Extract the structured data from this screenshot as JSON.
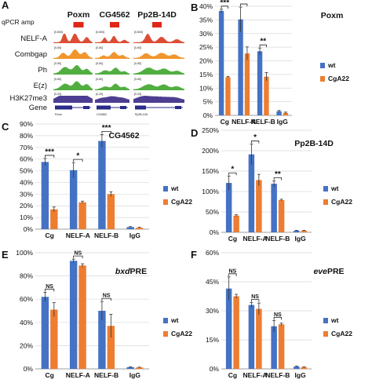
{
  "figure": {
    "panels": {
      "A": {
        "letter": "A",
        "header_label": "qPCR amp",
        "loci": [
          "Poxm",
          "CG4562",
          "Pp2B-14D"
        ],
        "tracks": [
          {
            "name": "NELF-A",
            "color": "#d83a1e",
            "scale": "[0-500]"
          },
          {
            "name": "Combgap",
            "color": "#ef8a16",
            "scale": "[0-50]"
          },
          {
            "name": "Ph",
            "color": "#3fa52c",
            "scale": "[0-50]"
          },
          {
            "name": "E(z)",
            "color": "#3fa52c",
            "scale": "[0-50]"
          },
          {
            "name": "H3K27me3",
            "color": "#43348c",
            "scale": "[0-20]"
          }
        ],
        "gene_label": "Gene",
        "gene_names": [
          "Poxm",
          "CG4562",
          "Pp2B-14D"
        ],
        "accent_color": "#e0281a"
      }
    }
  },
  "chart_data": [
    {
      "panel": "B",
      "type": "bar",
      "annotation": "Poxm",
      "categories": [
        "Cg",
        "NELF-A",
        "NELF-B",
        "IgG"
      ],
      "ylim": [
        0,
        40
      ],
      "yticks": [
        "0%",
        "5%",
        "10%",
        "15%",
        "20%",
        "25%",
        "30%",
        "35%",
        "40%"
      ],
      "series": [
        {
          "name": "wt",
          "color": "#4472c4",
          "values": [
            38.3,
            35.2,
            23.5,
            1.5
          ],
          "errors": [
            0.6,
            4.5,
            1.2,
            0.3
          ]
        },
        {
          "name": "CgA22",
          "color": "#ed7d31",
          "values": [
            14.0,
            22.7,
            14.2,
            0.9
          ],
          "errors": [
            0.3,
            2.4,
            1.5,
            0.3
          ]
        }
      ],
      "significance": [
        "***",
        "*",
        "**",
        ""
      ]
    },
    {
      "panel": "C",
      "type": "bar",
      "annotation": "CG4562",
      "categories": [
        "Cg",
        "NELF-A",
        "NELF-B",
        "IgG"
      ],
      "ylim": [
        0,
        90
      ],
      "yticks": [
        "0%",
        "10%",
        "20%",
        "30%",
        "40%",
        "50%",
        "60%",
        "70%",
        "80%",
        "90%"
      ],
      "series": [
        {
          "name": "wt",
          "color": "#4472c4",
          "values": [
            57.5,
            50.5,
            75.5,
            1.8
          ],
          "errors": [
            3.0,
            6.5,
            5.5,
            0.4
          ]
        },
        {
          "name": "CgA22",
          "color": "#ed7d31",
          "values": [
            17.0,
            23.0,
            30.0,
            1.2
          ],
          "errors": [
            2.0,
            1.0,
            2.0,
            0.4
          ]
        }
      ],
      "significance": [
        "***",
        "*",
        "***",
        ""
      ]
    },
    {
      "panel": "D",
      "type": "bar",
      "annotation": "Pp2B-14D",
      "categories": [
        "Cg",
        "NELF-A",
        "NELF-B",
        "IgG"
      ],
      "ylim": [
        0,
        250
      ],
      "yticks": [
        "0%",
        "50%",
        "100%",
        "150%",
        "200%",
        "250%"
      ],
      "series": [
        {
          "name": "wt",
          "color": "#4472c4",
          "values": [
            121,
            191,
            119,
            4
          ],
          "errors": [
            17,
            25,
            7,
            1
          ]
        },
        {
          "name": "CgA22",
          "color": "#ed7d31",
          "values": [
            41,
            128,
            79,
            4
          ],
          "errors": [
            2,
            14,
            2,
            1
          ]
        }
      ],
      "significance": [
        "*",
        "*",
        "**",
        ""
      ]
    },
    {
      "panel": "E",
      "type": "bar",
      "annotation": "bxdPRE",
      "categories": [
        "Cg",
        "NELF-A",
        "NELF-B",
        "IgG"
      ],
      "ylim": [
        0,
        100
      ],
      "yticks": [
        "0%",
        "20%",
        "40%",
        "60%",
        "80%",
        "100%"
      ],
      "series": [
        {
          "name": "wt",
          "color": "#4472c4",
          "values": [
            62,
            93,
            50,
            1.5
          ],
          "errors": [
            4,
            1.5,
            8,
            0.3
          ]
        },
        {
          "name": "CgA22",
          "color": "#ed7d31",
          "values": [
            51,
            89,
            37,
            1.2
          ],
          "errors": [
            6,
            1.5,
            10,
            0.3
          ]
        }
      ],
      "significance": [
        "NS",
        "NS",
        "NS",
        ""
      ]
    },
    {
      "panel": "F",
      "type": "bar",
      "annotation": "evePRE",
      "categories": [
        "Cg",
        "NELF-A",
        "NELF-B",
        "IgG"
      ],
      "ylim": [
        0,
        60
      ],
      "yticks": [
        "0%",
        "15%",
        "30%",
        "45%",
        "60%"
      ],
      "series": [
        {
          "name": "wt",
          "color": "#4472c4",
          "values": [
            41.5,
            33.0,
            22.0,
            1.2
          ],
          "errors": [
            6,
            1.2,
            3,
            0.3
          ]
        },
        {
          "name": "CgA22",
          "color": "#ed7d31",
          "values": [
            37.5,
            31.0,
            23.0,
            0.9
          ],
          "errors": [
            1,
            3,
            0.6,
            0.2
          ]
        }
      ],
      "significance": [
        "NS",
        "NS",
        "NS",
        ""
      ]
    }
  ]
}
